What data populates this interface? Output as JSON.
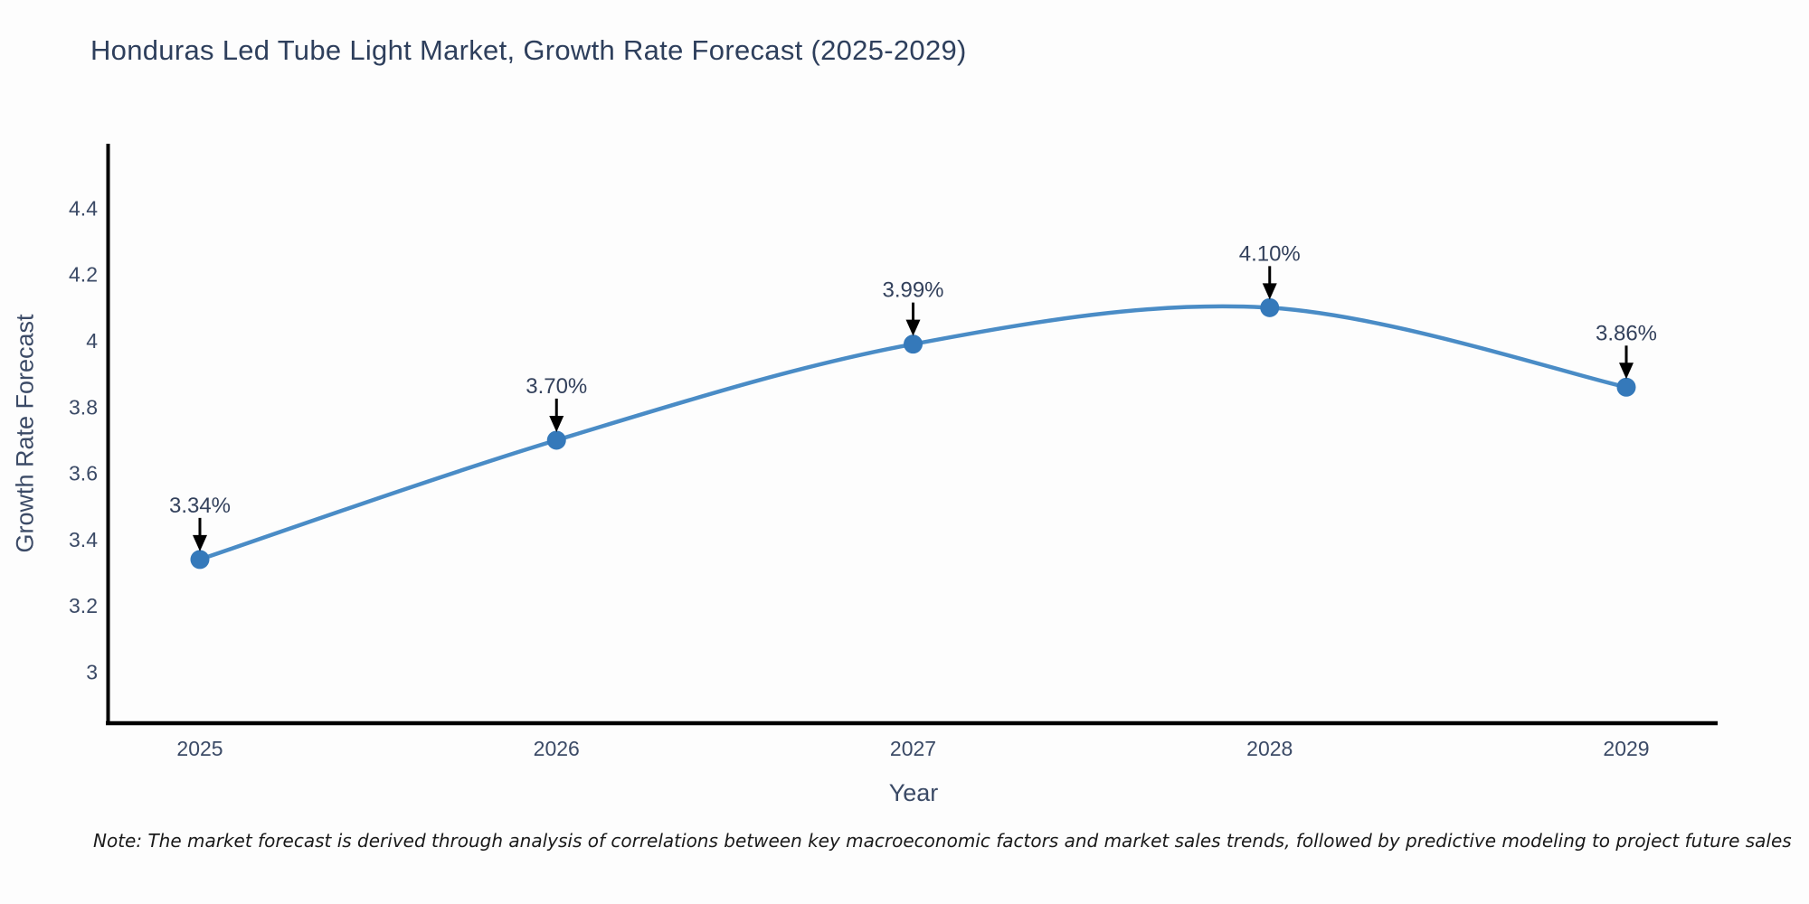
{
  "title": "Honduras Led Tube Light Market, Growth Rate Forecast (2025-2029)",
  "note": "Note: The market forecast is derived through analysis of correlations between key macroeconomic factors and market sales trends, followed by predictive modeling to project future sales",
  "chart_data": {
    "type": "line",
    "title": "Honduras Led Tube Light Market, Growth Rate Forecast (2025-2029)",
    "xlabel": "Year",
    "ylabel": "Growth Rate Forecast",
    "x": [
      2025,
      2026,
      2027,
      2028,
      2029
    ],
    "x_labels": [
      "2025",
      "2026",
      "2027",
      "2028",
      "2029"
    ],
    "series": [
      {
        "name": "Growth Rate Forecast",
        "values": [
          3.34,
          3.7,
          3.99,
          4.1,
          3.86
        ],
        "point_labels": [
          "3.34%",
          "3.70%",
          "3.99%",
          "4.10%",
          "3.86%"
        ]
      }
    ],
    "yticks": [
      3,
      3.2,
      3.4,
      3.6,
      3.8,
      4,
      4.2,
      4.4
    ],
    "ytick_labels": [
      "3",
      "3.2",
      "3.4",
      "3.6",
      "3.8",
      "4",
      "4.2",
      "4.4"
    ],
    "ylim": [
      2.85,
      4.6
    ],
    "xlim": [
      2024.73,
      2029.26
    ],
    "grid": false,
    "legend_position": "none",
    "line_shape": "spline",
    "marker": "circle",
    "annotation_style": "value label with downward black arrow to each point"
  },
  "colors": {
    "line": "#4a8cc6",
    "marker": "#3579ba",
    "axis": "#000000",
    "arrow": "#000000",
    "title_text": "#2e3f5c",
    "tick_text": "#3b4a66",
    "annotation_text": "#33415c",
    "note_text": "#1a1a1a",
    "background": "#fdfdfd"
  }
}
